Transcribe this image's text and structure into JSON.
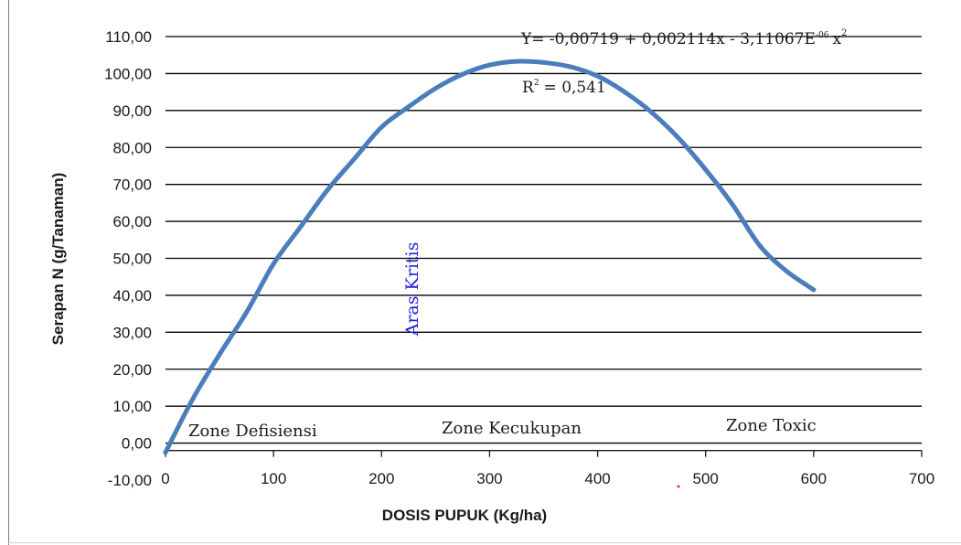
{
  "chart_data": {
    "type": "line",
    "title": "",
    "xlabel": "DOSIS PUPUK (Kg/ha)",
    "ylabel": "Serapan N (g/Tanaman)",
    "xlim": [
      0,
      700
    ],
    "ylim": [
      -10,
      110
    ],
    "x_ticks": [
      "0",
      "100",
      "200",
      "300",
      "400",
      "500",
      "600",
      "700"
    ],
    "y_ticks": [
      "-10,00",
      "0,00",
      "10,00",
      "20,00",
      "30,00",
      "40,00",
      "50,00",
      "60,00",
      "70,00",
      "80,00",
      "90,00",
      "100,00",
      "110,00"
    ],
    "grid": "horizontal",
    "legend": "none",
    "series": [
      {
        "color": "#4a7ebb",
        "x": [
          0,
          25,
          50,
          75,
          100,
          125,
          150,
          175,
          200,
          225,
          250,
          275,
          300,
          325,
          350,
          375,
          400,
          425,
          450,
          475,
          500,
          525,
          550,
          575,
          600
        ],
        "y": [
          -2.5,
          11.8,
          24.0,
          35.4,
          48.5,
          58.5,
          68.5,
          77.0,
          85.5,
          91.0,
          96.0,
          99.8,
          102.3,
          103.3,
          103.0,
          101.8,
          99.3,
          95.0,
          89.5,
          82.5,
          74.0,
          64.5,
          53.5,
          46.5,
          41.5
        ]
      }
    ],
    "annotations": {
      "equation": {
        "y_equals": "Y= -0,00719 + 0,002114x - 3,11067E",
        "exp": "-06",
        "var": "x",
        "power": "2"
      },
      "r2": {
        "r": "R",
        "sup": "2",
        "value": "= 0,541"
      },
      "critical_level": "Aras Kritis",
      "zones": [
        "Zone Defisiensi",
        "Zone Kecukupan",
        "Zone Toxic"
      ]
    },
    "colors": {
      "curve": "#4a7ebb",
      "aras_kritis": "#2222dd",
      "grid": "#000000"
    }
  }
}
